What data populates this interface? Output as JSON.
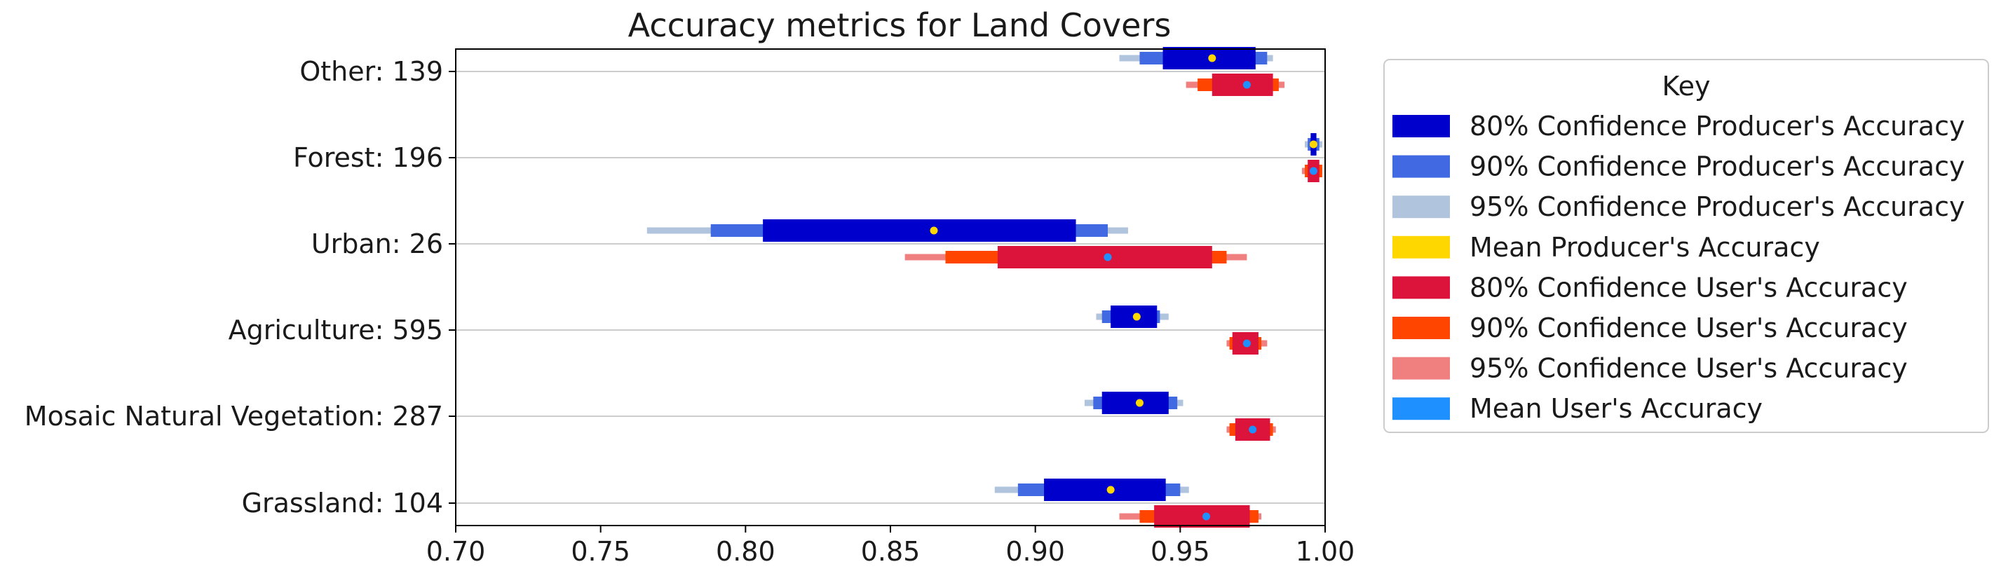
{
  "chart_data": {
    "type": "bar",
    "title": "Accuracy metrics for Land Covers",
    "xlabel": "",
    "ylabel": "",
    "xlim": [
      0.7,
      1.0
    ],
    "xticks": [
      "0.70",
      "0.75",
      "0.80",
      "0.85",
      "0.90",
      "0.95",
      "1.00"
    ],
    "grid": "horizontal lines at categories",
    "legend_position": "right, outside plot",
    "legend_title": "Key",
    "categories": [
      "Other: 139",
      "Forest: 196",
      "Urban: 26",
      "Agriculture: 595",
      "Mosaic Natural Vegetation: 287",
      "Grassland: 104"
    ],
    "producers": [
      {
        "ci95": [
          0.929,
          0.982
        ],
        "ci90": [
          0.936,
          0.98
        ],
        "ci80": [
          0.944,
          0.976
        ],
        "mean": 0.961
      },
      {
        "ci95": [
          0.993,
          0.999
        ],
        "ci90": [
          0.994,
          0.998
        ],
        "ci80": [
          0.995,
          0.997
        ],
        "mean": 0.996
      },
      {
        "ci95": [
          0.766,
          0.932
        ],
        "ci90": [
          0.788,
          0.925
        ],
        "ci80": [
          0.806,
          0.914
        ],
        "mean": 0.865
      },
      {
        "ci95": [
          0.921,
          0.946
        ],
        "ci90": [
          0.923,
          0.943
        ],
        "ci80": [
          0.926,
          0.942
        ],
        "mean": 0.935
      },
      {
        "ci95": [
          0.917,
          0.951
        ],
        "ci90": [
          0.92,
          0.949
        ],
        "ci80": [
          0.923,
          0.946
        ],
        "mean": 0.936
      },
      {
        "ci95": [
          0.886,
          0.953
        ],
        "ci90": [
          0.894,
          0.95
        ],
        "ci80": [
          0.903,
          0.945
        ],
        "mean": 0.926
      }
    ],
    "users": [
      {
        "ci95": [
          0.952,
          0.986
        ],
        "ci90": [
          0.956,
          0.984
        ],
        "ci80": [
          0.961,
          0.982
        ],
        "mean": 0.973
      },
      {
        "ci95": [
          0.992,
          0.999
        ],
        "ci90": [
          0.993,
          0.999
        ],
        "ci80": [
          0.994,
          0.998
        ],
        "mean": 0.996
      },
      {
        "ci95": [
          0.855,
          0.973
        ],
        "ci90": [
          0.869,
          0.966
        ],
        "ci80": [
          0.887,
          0.961
        ],
        "mean": 0.925
      },
      {
        "ci95": [
          0.966,
          0.98
        ],
        "ci90": [
          0.967,
          0.978
        ],
        "ci80": [
          0.968,
          0.977
        ],
        "mean": 0.973
      },
      {
        "ci95": [
          0.966,
          0.983
        ],
        "ci90": [
          0.967,
          0.982
        ],
        "ci80": [
          0.969,
          0.981
        ],
        "mean": 0.975
      },
      {
        "ci95": [
          0.929,
          0.978
        ],
        "ci90": [
          0.936,
          0.977
        ],
        "ci80": [
          0.941,
          0.974
        ],
        "mean": 0.959
      }
    ],
    "legend": [
      {
        "label": "80% Confidence Producer's Accuracy",
        "color": "#0000CD"
      },
      {
        "label": "90% Confidence Producer's Accuracy",
        "color": "#4169E1"
      },
      {
        "label": "95% Confidence Producer's Accuracy",
        "color": "#B0C4DE"
      },
      {
        "label": "Mean Producer's Accuracy",
        "color": "#FFD700"
      },
      {
        "label": "80% Confidence User's Accuracy",
        "color": "#DC143C"
      },
      {
        "label": "90% Confidence User's Accuracy",
        "color": "#FF4500"
      },
      {
        "label": "95% Confidence User's Accuracy",
        "color": "#F08080"
      },
      {
        "label": "Mean User's Accuracy",
        "color": "#1E90FF"
      }
    ],
    "colors": {
      "producer_ci80": "#0000CD",
      "producer_ci90": "#4169E1",
      "producer_ci95": "#B0C4DE",
      "producer_mean": "#FFD700",
      "user_ci80": "#DC143C",
      "user_ci90": "#FF4500",
      "user_ci95": "#F08080",
      "user_mean": "#1E90FF",
      "grid": "#cccccc"
    }
  }
}
